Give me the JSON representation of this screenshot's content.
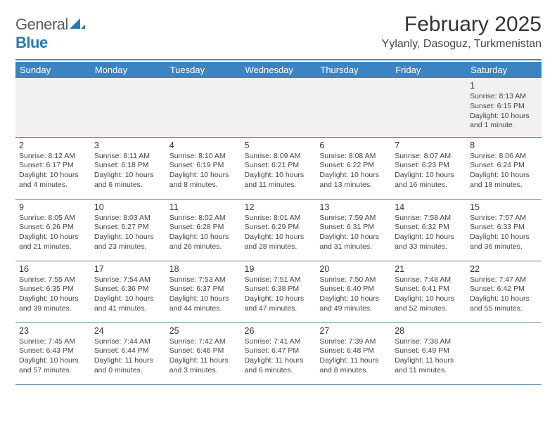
{
  "brand": {
    "general": "General",
    "blue": "Blue"
  },
  "title": "February 2025",
  "location": "Yylanly, Dasoguz, Turkmenistan",
  "colors": {
    "header_bg": "#3b84c4",
    "header_text": "#ffffff",
    "divider": "#5b87a6",
    "first_row_bg": "#f1f1f1",
    "text": "#444444",
    "logo_gray": "#5a5a5a",
    "logo_blue": "#2a7ab0"
  },
  "days_of_week": [
    "Sunday",
    "Monday",
    "Tuesday",
    "Wednesday",
    "Thursday",
    "Friday",
    "Saturday"
  ],
  "weeks": [
    [
      null,
      null,
      null,
      null,
      null,
      null,
      {
        "n": "1",
        "sr": "Sunrise: 8:13 AM",
        "ss": "Sunset: 6:15 PM",
        "dl": "Daylight: 10 hours and 1 minute."
      }
    ],
    [
      {
        "n": "2",
        "sr": "Sunrise: 8:12 AM",
        "ss": "Sunset: 6:17 PM",
        "dl": "Daylight: 10 hours and 4 minutes."
      },
      {
        "n": "3",
        "sr": "Sunrise: 8:11 AM",
        "ss": "Sunset: 6:18 PM",
        "dl": "Daylight: 10 hours and 6 minutes."
      },
      {
        "n": "4",
        "sr": "Sunrise: 8:10 AM",
        "ss": "Sunset: 6:19 PM",
        "dl": "Daylight: 10 hours and 8 minutes."
      },
      {
        "n": "5",
        "sr": "Sunrise: 8:09 AM",
        "ss": "Sunset: 6:21 PM",
        "dl": "Daylight: 10 hours and 11 minutes."
      },
      {
        "n": "6",
        "sr": "Sunrise: 8:08 AM",
        "ss": "Sunset: 6:22 PM",
        "dl": "Daylight: 10 hours and 13 minutes."
      },
      {
        "n": "7",
        "sr": "Sunrise: 8:07 AM",
        "ss": "Sunset: 6:23 PM",
        "dl": "Daylight: 10 hours and 16 minutes."
      },
      {
        "n": "8",
        "sr": "Sunrise: 8:06 AM",
        "ss": "Sunset: 6:24 PM",
        "dl": "Daylight: 10 hours and 18 minutes."
      }
    ],
    [
      {
        "n": "9",
        "sr": "Sunrise: 8:05 AM",
        "ss": "Sunset: 6:26 PM",
        "dl": "Daylight: 10 hours and 21 minutes."
      },
      {
        "n": "10",
        "sr": "Sunrise: 8:03 AM",
        "ss": "Sunset: 6:27 PM",
        "dl": "Daylight: 10 hours and 23 minutes."
      },
      {
        "n": "11",
        "sr": "Sunrise: 8:02 AM",
        "ss": "Sunset: 6:28 PM",
        "dl": "Daylight: 10 hours and 26 minutes."
      },
      {
        "n": "12",
        "sr": "Sunrise: 8:01 AM",
        "ss": "Sunset: 6:29 PM",
        "dl": "Daylight: 10 hours and 28 minutes."
      },
      {
        "n": "13",
        "sr": "Sunrise: 7:59 AM",
        "ss": "Sunset: 6:31 PM",
        "dl": "Daylight: 10 hours and 31 minutes."
      },
      {
        "n": "14",
        "sr": "Sunrise: 7:58 AM",
        "ss": "Sunset: 6:32 PM",
        "dl": "Daylight: 10 hours and 33 minutes."
      },
      {
        "n": "15",
        "sr": "Sunrise: 7:57 AM",
        "ss": "Sunset: 6:33 PM",
        "dl": "Daylight: 10 hours and 36 minutes."
      }
    ],
    [
      {
        "n": "16",
        "sr": "Sunrise: 7:55 AM",
        "ss": "Sunset: 6:35 PM",
        "dl": "Daylight: 10 hours and 39 minutes."
      },
      {
        "n": "17",
        "sr": "Sunrise: 7:54 AM",
        "ss": "Sunset: 6:36 PM",
        "dl": "Daylight: 10 hours and 41 minutes."
      },
      {
        "n": "18",
        "sr": "Sunrise: 7:53 AM",
        "ss": "Sunset: 6:37 PM",
        "dl": "Daylight: 10 hours and 44 minutes."
      },
      {
        "n": "19",
        "sr": "Sunrise: 7:51 AM",
        "ss": "Sunset: 6:38 PM",
        "dl": "Daylight: 10 hours and 47 minutes."
      },
      {
        "n": "20",
        "sr": "Sunrise: 7:50 AM",
        "ss": "Sunset: 6:40 PM",
        "dl": "Daylight: 10 hours and 49 minutes."
      },
      {
        "n": "21",
        "sr": "Sunrise: 7:48 AM",
        "ss": "Sunset: 6:41 PM",
        "dl": "Daylight: 10 hours and 52 minutes."
      },
      {
        "n": "22",
        "sr": "Sunrise: 7:47 AM",
        "ss": "Sunset: 6:42 PM",
        "dl": "Daylight: 10 hours and 55 minutes."
      }
    ],
    [
      {
        "n": "23",
        "sr": "Sunrise: 7:45 AM",
        "ss": "Sunset: 6:43 PM",
        "dl": "Daylight: 10 hours and 57 minutes."
      },
      {
        "n": "24",
        "sr": "Sunrise: 7:44 AM",
        "ss": "Sunset: 6:44 PM",
        "dl": "Daylight: 11 hours and 0 minutes."
      },
      {
        "n": "25",
        "sr": "Sunrise: 7:42 AM",
        "ss": "Sunset: 6:46 PM",
        "dl": "Daylight: 11 hours and 3 minutes."
      },
      {
        "n": "26",
        "sr": "Sunrise: 7:41 AM",
        "ss": "Sunset: 6:47 PM",
        "dl": "Daylight: 11 hours and 6 minutes."
      },
      {
        "n": "27",
        "sr": "Sunrise: 7:39 AM",
        "ss": "Sunset: 6:48 PM",
        "dl": "Daylight: 11 hours and 8 minutes."
      },
      {
        "n": "28",
        "sr": "Sunrise: 7:38 AM",
        "ss": "Sunset: 6:49 PM",
        "dl": "Daylight: 11 hours and 11 minutes."
      },
      null
    ]
  ]
}
